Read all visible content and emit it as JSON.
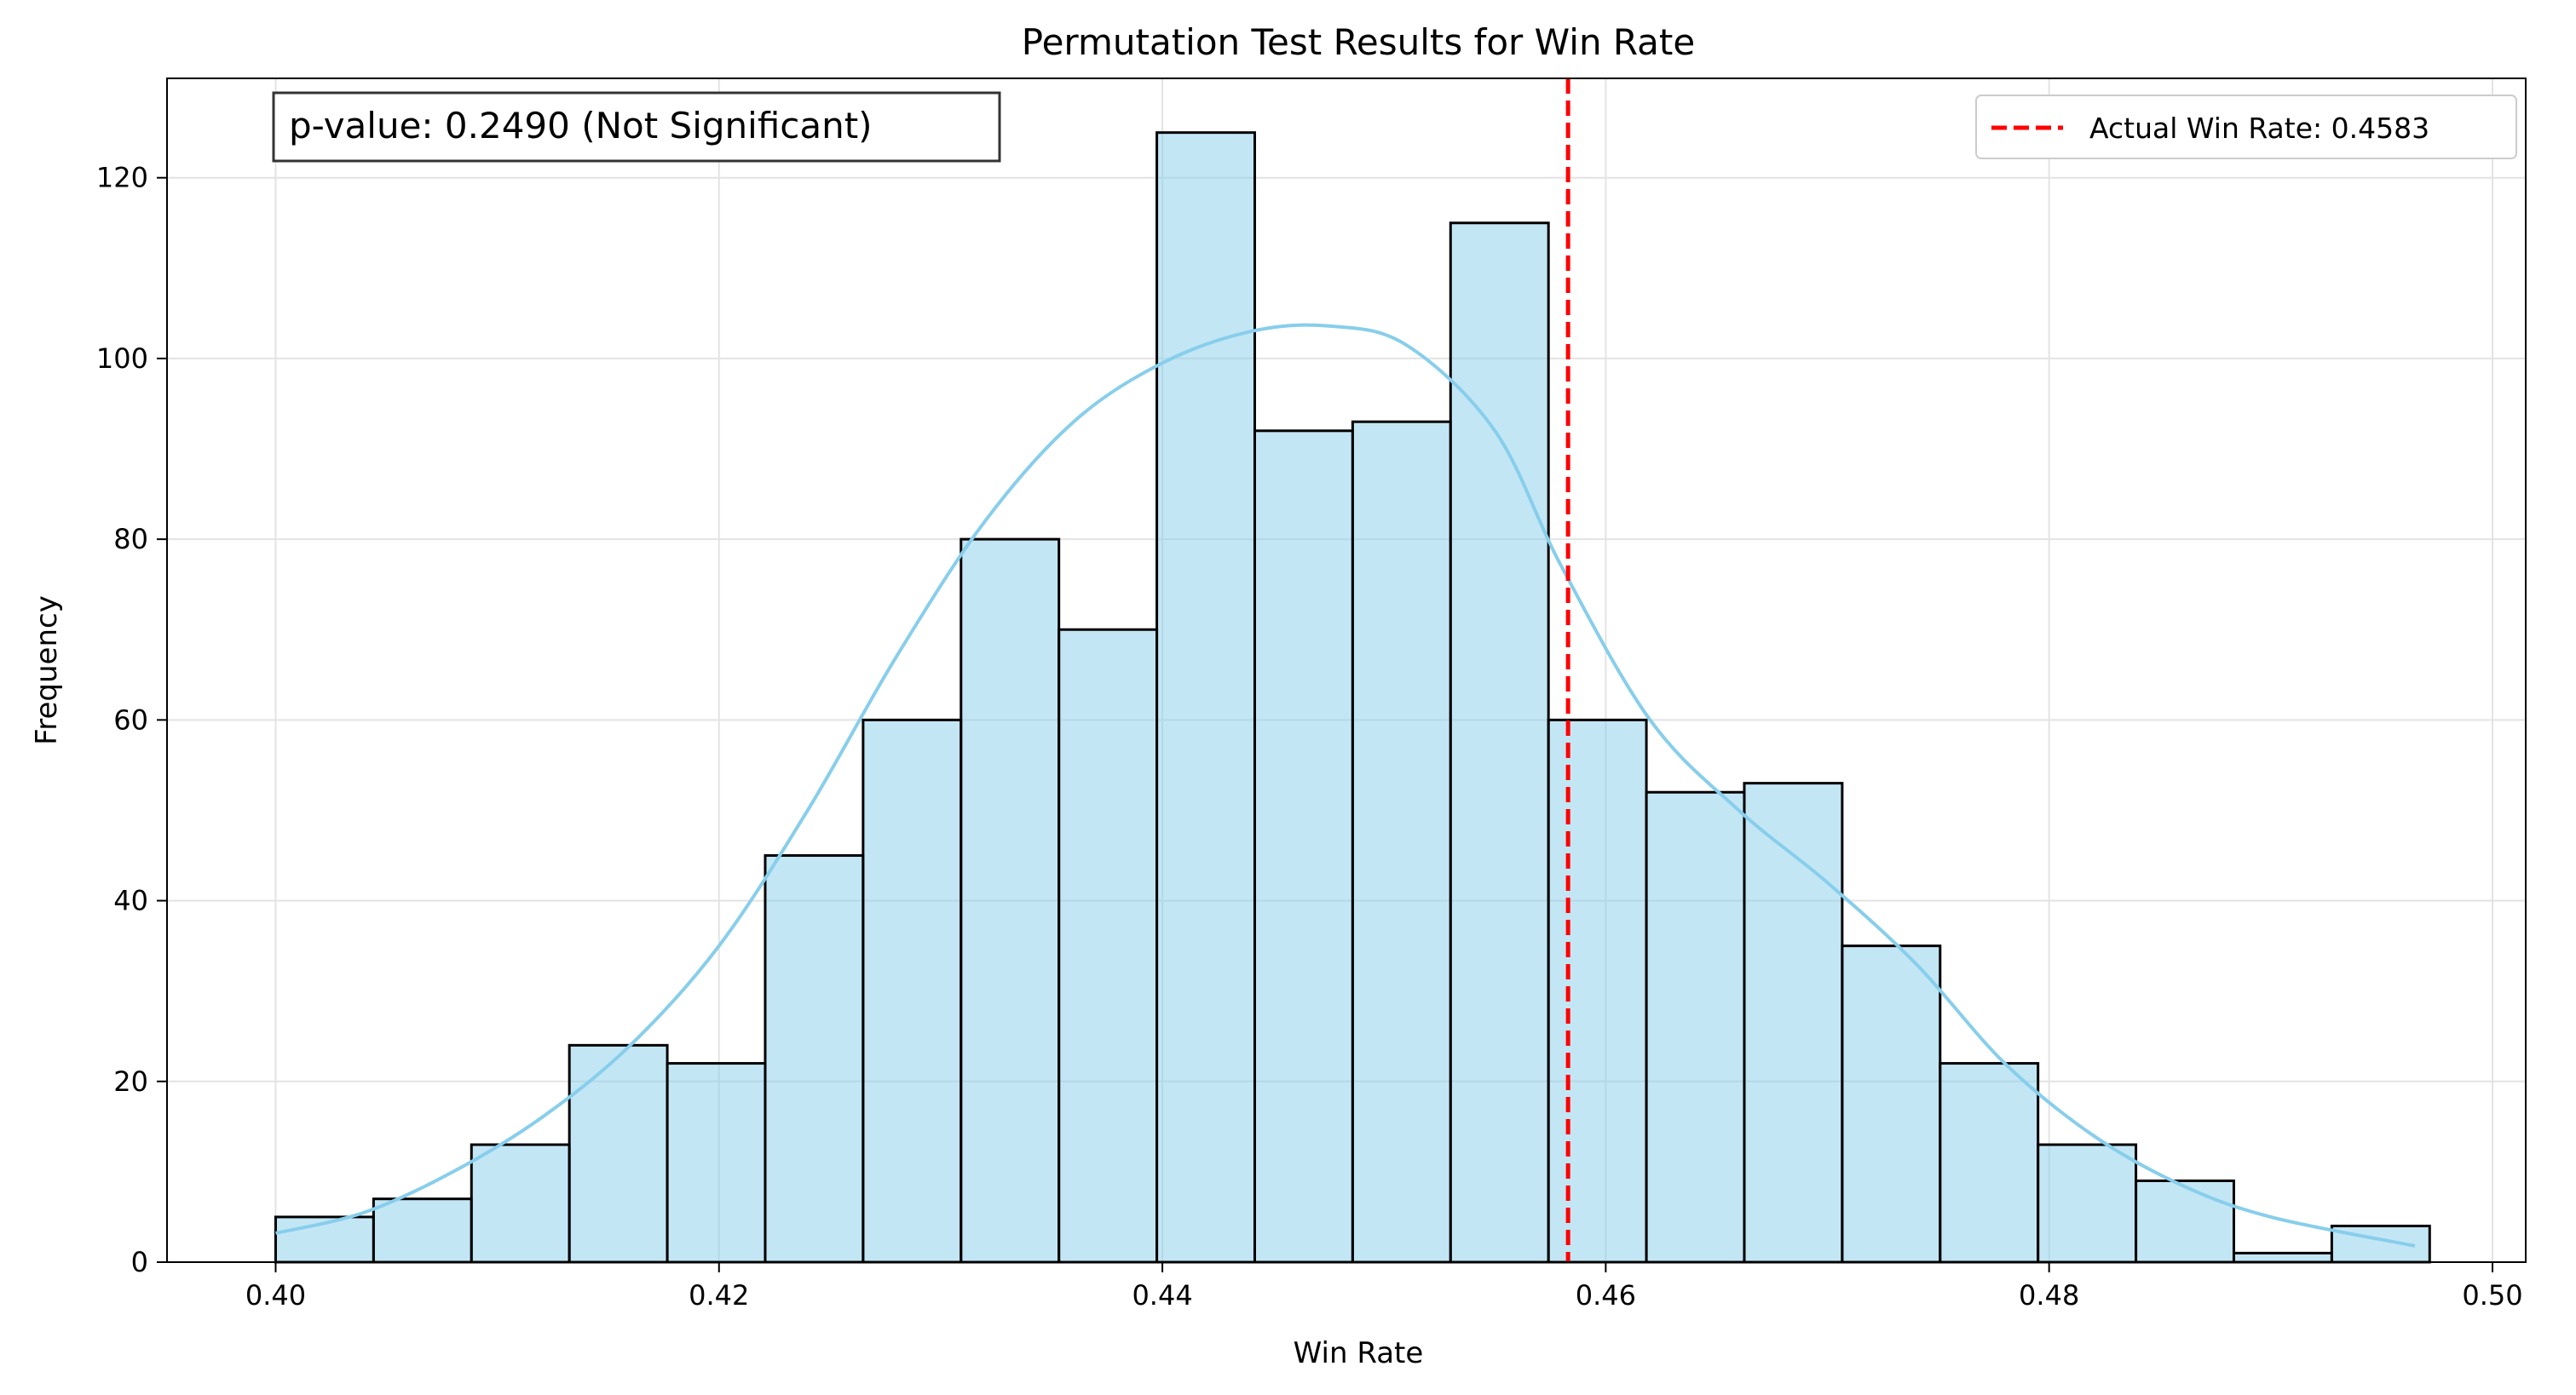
{
  "chart_data": {
    "type": "bar",
    "title": "Permutation Test Results for Win Rate",
    "xlabel": "Win Rate",
    "ylabel": "Frequency",
    "xlim": [
      0.3951,
      0.5015
    ],
    "ylim": [
      0,
      131
    ],
    "xticks": [
      0.4,
      0.42,
      0.44,
      0.46,
      0.48,
      0.5
    ],
    "xtick_labels": [
      "0.40",
      "0.42",
      "0.44",
      "0.46",
      "0.48",
      "0.50"
    ],
    "yticks": [
      0,
      20,
      40,
      60,
      80,
      100,
      120
    ],
    "ytick_labels": [
      "0",
      "20",
      "40",
      "60",
      "80",
      "100",
      "120"
    ],
    "grid": true,
    "bin_start": 0.4,
    "bin_width": 0.0044167,
    "values": [
      5,
      7,
      13,
      24,
      22,
      45,
      60,
      80,
      70,
      125,
      92,
      93,
      115,
      60,
      52,
      53,
      35,
      22,
      13,
      9,
      1,
      4
    ],
    "bar_color": "#87ceeb",
    "bar_edge_color": "#000000",
    "kde": {
      "color": "#87ceeb",
      "x": [
        0.4,
        0.404,
        0.408,
        0.412,
        0.416,
        0.42,
        0.424,
        0.428,
        0.432,
        0.436,
        0.44,
        0.444,
        0.4475,
        0.451,
        0.455,
        0.458,
        0.462,
        0.466,
        0.47,
        0.474,
        0.478,
        0.482,
        0.486,
        0.49,
        0.4965
      ],
      "y": [
        3.2,
        5.5,
        10,
        16,
        24,
        35,
        50,
        67,
        82,
        93,
        99.5,
        103,
        103.6,
        101.5,
        92,
        77,
        60,
        50,
        42,
        33,
        22,
        14,
        8.5,
        5,
        1.8
      ]
    },
    "reference_line": {
      "x": 0.4583,
      "label": "Actual Win Rate: 0.4583",
      "color": "#ff0000",
      "style": "dashed"
    },
    "annotation": "p-value: 0.2490 (Not Significant)",
    "legend_position": "top-right"
  }
}
